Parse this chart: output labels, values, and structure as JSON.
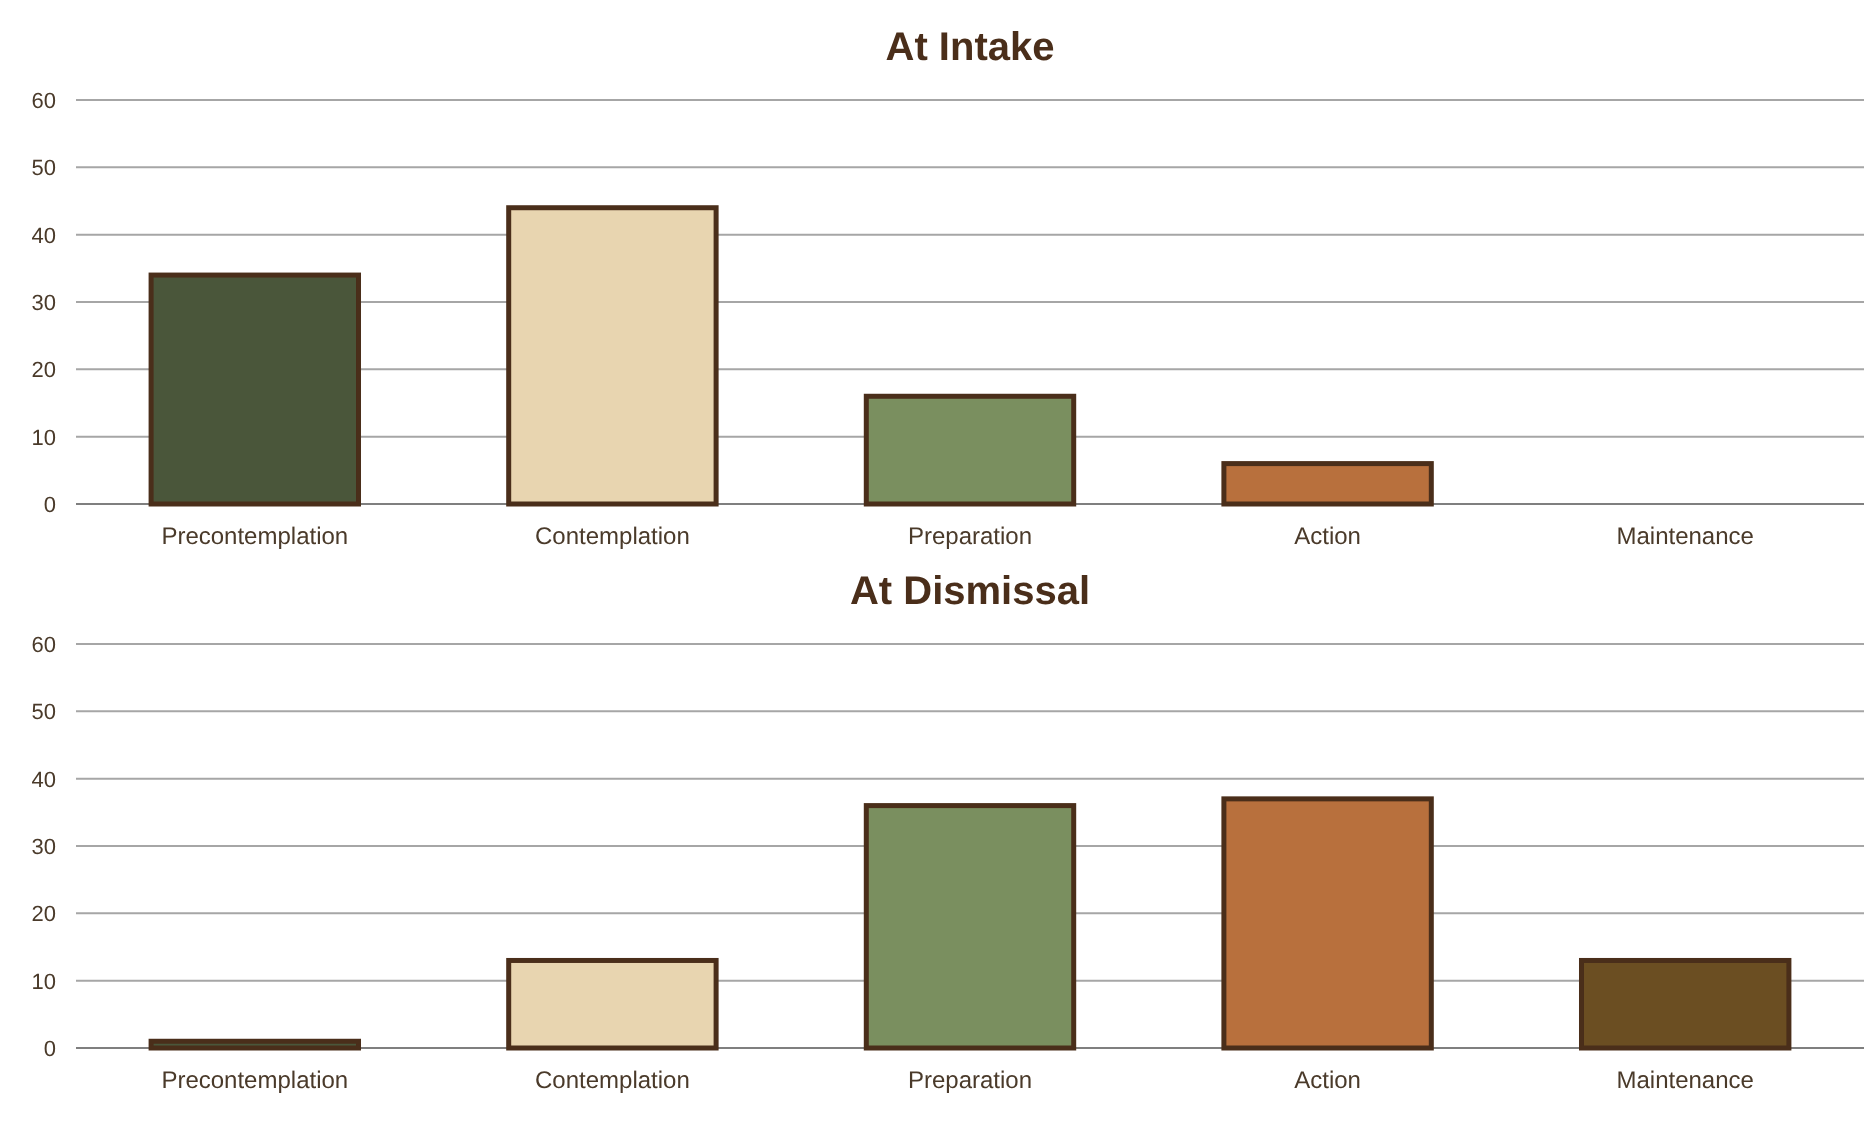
{
  "chart_data": [
    {
      "type": "bar",
      "title": "At Intake",
      "categories": [
        "Precontemplation",
        "Contemplation",
        "Preparation",
        "Action",
        "Maintenance"
      ],
      "values": [
        34,
        44,
        16,
        6,
        0
      ],
      "colors": [
        "#4a563a",
        "#e8d5b0",
        "#7a8f5f",
        "#b8703d",
        "#6b4e22"
      ],
      "ylim": [
        0,
        60
      ],
      "yticks": [
        0,
        10,
        20,
        30,
        40,
        50,
        60
      ],
      "grid": "y"
    },
    {
      "type": "bar",
      "title": "At Dismissal",
      "categories": [
        "Precontemplation",
        "Contemplation",
        "Preparation",
        "Action",
        "Maintenance"
      ],
      "values": [
        1,
        13,
        36,
        37,
        13
      ],
      "colors": [
        "#4a563a",
        "#e8d5b0",
        "#7a8f5f",
        "#b8703d",
        "#6b4e22"
      ],
      "ylim": [
        0,
        60
      ],
      "yticks": [
        0,
        10,
        20,
        30,
        40,
        50,
        60
      ],
      "grid": "y"
    }
  ]
}
